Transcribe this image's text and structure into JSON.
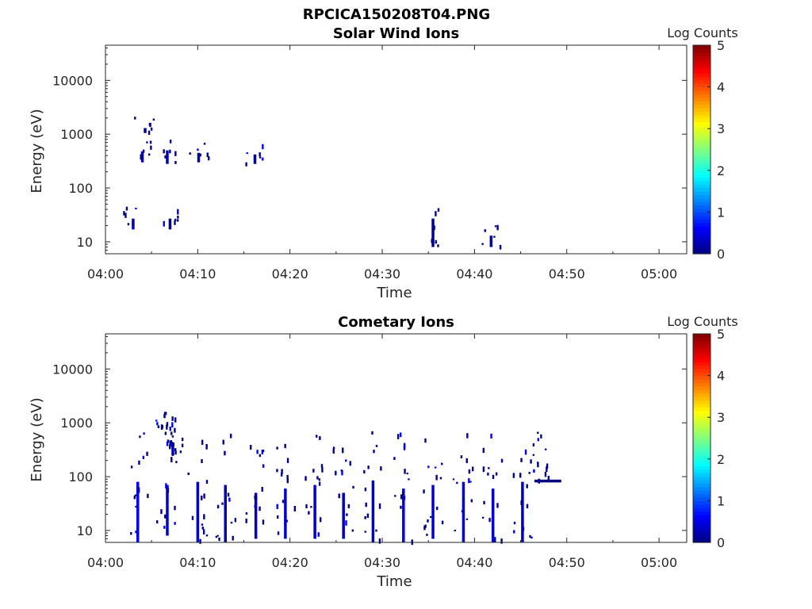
{
  "figure_title": "RPCICA150208T04.PNG",
  "colormap": "jet",
  "chart_data": [
    {
      "type": "heatmap",
      "title": "Solar Wind Ions",
      "xlabel": "Time",
      "ylabel": "Energy (eV)",
      "y_scale": "log",
      "ylim": [
        6,
        45000
      ],
      "xlim": [
        "04:00",
        "05:03"
      ],
      "x_ticks": [
        "04:00",
        "04:10",
        "04:20",
        "04:30",
        "04:40",
        "04:50",
        "05:00"
      ],
      "y_ticks": [
        "10",
        "100",
        "1000",
        "10000"
      ],
      "colorbar": {
        "label": "Log Counts",
        "range": [
          0,
          5
        ],
        "ticks": [
          "0",
          "1",
          "2",
          "3",
          "4",
          "5"
        ]
      },
      "cells": [
        {
          "t": 4.3,
          "e1": 1050,
          "e2": 1300,
          "v": 0.1
        },
        {
          "t": 4.0,
          "e1": 300,
          "e2": 480,
          "v": 0.2
        },
        {
          "t": 6.7,
          "e1": 280,
          "e2": 500,
          "v": 0.3
        },
        {
          "t": 10.1,
          "e1": 300,
          "e2": 450,
          "v": 0.2
        },
        {
          "t": 16.2,
          "e1": 280,
          "e2": 420,
          "v": 0.1
        },
        {
          "t": 3.0,
          "e1": 17,
          "e2": 27,
          "v": 0.1
        },
        {
          "t": 7.0,
          "e1": 17,
          "e2": 27,
          "v": 0.1
        },
        {
          "t": 35.5,
          "e1": 8,
          "e2": 27,
          "v": 0.1
        },
        {
          "t": 41.8,
          "e1": 8,
          "e2": 13,
          "v": 0.1
        }
      ]
    },
    {
      "type": "heatmap",
      "title": "Cometary Ions",
      "xlabel": "Time",
      "ylabel": "Energy (eV)",
      "y_scale": "log",
      "ylim": [
        6,
        45000
      ],
      "xlim": [
        "04:00",
        "05:03"
      ],
      "x_ticks": [
        "04:00",
        "04:10",
        "04:20",
        "04:30",
        "04:40",
        "04:50",
        "05:00"
      ],
      "y_ticks": [
        "10",
        "100",
        "1000",
        "10000"
      ],
      "colorbar": {
        "label": "Log Counts",
        "range": [
          0,
          5
        ],
        "ticks": [
          "0",
          "1",
          "2",
          "3",
          "4",
          "5"
        ]
      },
      "cells": [
        {
          "t": 3.5,
          "e1": 6,
          "e2": 80,
          "v": 0.6
        },
        {
          "t": 6.7,
          "e1": 8,
          "e2": 70,
          "v": 0.4
        },
        {
          "t": 10.0,
          "e1": 6,
          "e2": 80,
          "v": 0.4
        },
        {
          "t": 13.0,
          "e1": 6,
          "e2": 70,
          "v": 0.3
        },
        {
          "t": 16.3,
          "e1": 7,
          "e2": 50,
          "v": 0.3
        },
        {
          "t": 19.5,
          "e1": 7,
          "e2": 60,
          "v": 0.4
        },
        {
          "t": 22.7,
          "e1": 7,
          "e2": 70,
          "v": 0.4
        },
        {
          "t": 25.8,
          "e1": 7,
          "e2": 50,
          "v": 0.3
        },
        {
          "t": 29.0,
          "e1": 6,
          "e2": 85,
          "v": 0.4
        },
        {
          "t": 32.3,
          "e1": 6,
          "e2": 60,
          "v": 0.6
        },
        {
          "t": 35.5,
          "e1": 7,
          "e2": 70,
          "v": 0.4
        },
        {
          "t": 38.8,
          "e1": 6,
          "e2": 80,
          "v": 0.6
        },
        {
          "t": 42.0,
          "e1": 6,
          "e2": 60,
          "v": 0.4
        },
        {
          "t": 45.2,
          "e1": 6,
          "e2": 80,
          "v": 0.3
        },
        {
          "t": 47.5,
          "e1": 78,
          "e2": 88,
          "v": 0.0
        },
        {
          "t": 6.5,
          "e1": 1400,
          "e2": 1600,
          "v": 0.0
        },
        {
          "t": 7.3,
          "e1": 250,
          "e2": 420,
          "v": 0.2
        }
      ]
    }
  ]
}
